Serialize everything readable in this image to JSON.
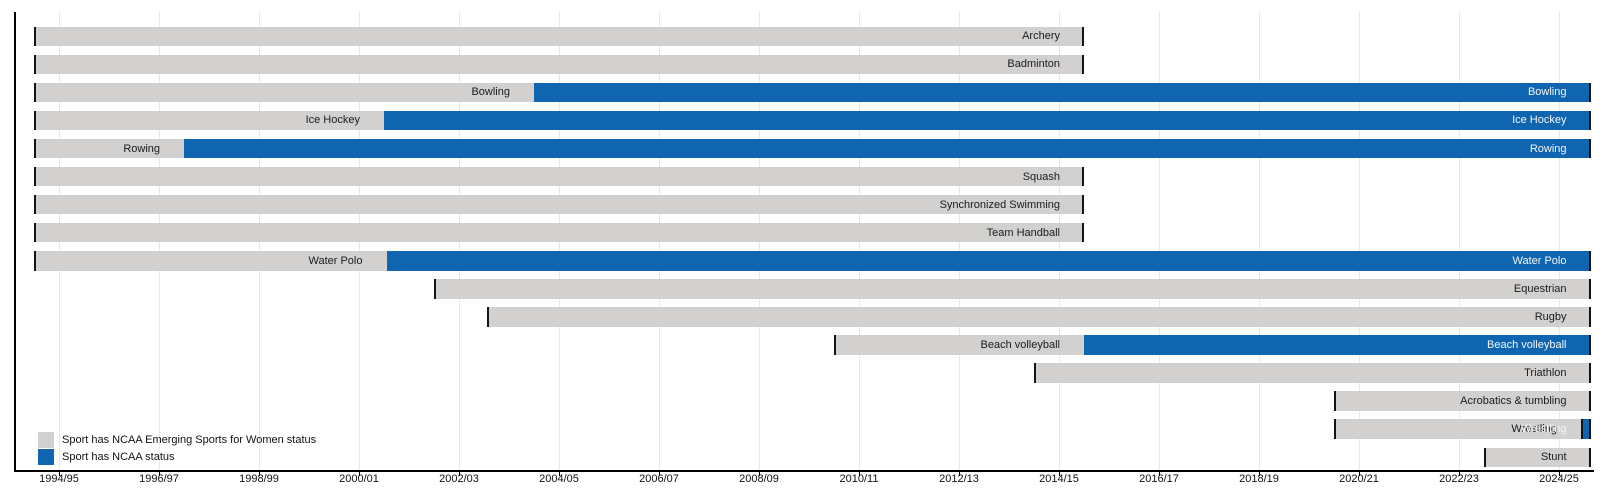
{
  "chart_data": {
    "type": "bar",
    "subtype": "horizontal-gantt-timeline",
    "title": "",
    "x_axis": {
      "unit": "academic year",
      "range_years": [
        1993.6,
        2025.7
      ],
      "grid": true,
      "ticks": [
        {
          "label": "1994/95",
          "year": 1994.5
        },
        {
          "label": "1996/97",
          "year": 1996.5
        },
        {
          "label": "1998/99",
          "year": 1998.5
        },
        {
          "label": "2000/01",
          "year": 2000.5
        },
        {
          "label": "2002/03",
          "year": 2002.5
        },
        {
          "label": "2004/05",
          "year": 2004.5
        },
        {
          "label": "2006/07",
          "year": 2006.5
        },
        {
          "label": "2008/09",
          "year": 2008.5
        },
        {
          "label": "2010/11",
          "year": 2010.5
        },
        {
          "label": "2012/13",
          "year": 2012.5
        },
        {
          "label": "2014/15",
          "year": 2014.5
        },
        {
          "label": "2016/17",
          "year": 2016.5
        },
        {
          "label": "2018/19",
          "year": 2018.5
        },
        {
          "label": "2020/21",
          "year": 2020.5
        },
        {
          "label": "2022/23",
          "year": 2022.5
        },
        {
          "label": "2024/25",
          "year": 2024.5
        }
      ]
    },
    "status_colors": {
      "emerging": "#d3d1cf",
      "ncaa": "#1065b1"
    },
    "legend": [
      {
        "swatch": "emerging",
        "label": "Sport has NCAA Emerging Sports for Women status"
      },
      {
        "swatch": "ncaa",
        "label": "Sport has NCAA status"
      }
    ],
    "sports": [
      {
        "name": "Archery",
        "segments": [
          {
            "status": "emerging",
            "start": 1994.0,
            "end": 2015.0
          }
        ]
      },
      {
        "name": "Badminton",
        "segments": [
          {
            "status": "emerging",
            "start": 1994.0,
            "end": 2015.0
          }
        ]
      },
      {
        "name": "Bowling",
        "segments": [
          {
            "status": "emerging",
            "start": 1994.0,
            "end": 2004.0
          },
          {
            "status": "ncaa",
            "start": 2004.0,
            "end": 2025.13
          }
        ]
      },
      {
        "name": "Ice Hockey",
        "segments": [
          {
            "status": "emerging",
            "start": 1994.0,
            "end": 2001.0
          },
          {
            "status": "ncaa",
            "start": 2001.0,
            "end": 2025.13
          }
        ]
      },
      {
        "name": "Rowing",
        "segments": [
          {
            "status": "emerging",
            "start": 1994.0,
            "end": 1997.0
          },
          {
            "status": "ncaa",
            "start": 1997.0,
            "end": 2025.13
          }
        ]
      },
      {
        "name": "Squash",
        "segments": [
          {
            "status": "emerging",
            "start": 1994.0,
            "end": 2015.0
          }
        ]
      },
      {
        "name": "Synchronized Swimming",
        "segments": [
          {
            "status": "emerging",
            "start": 1994.0,
            "end": 2015.0
          }
        ]
      },
      {
        "name": "Team Handball",
        "segments": [
          {
            "status": "emerging",
            "start": 1994.0,
            "end": 2015.0
          }
        ]
      },
      {
        "name": "Water Polo",
        "segments": [
          {
            "status": "emerging",
            "start": 1994.0,
            "end": 2001.05
          },
          {
            "status": "ncaa",
            "start": 2001.05,
            "end": 2025.13
          }
        ]
      },
      {
        "name": "Equestrian",
        "segments": [
          {
            "status": "emerging",
            "start": 2002.0,
            "end": 2025.13
          }
        ]
      },
      {
        "name": "Rugby",
        "segments": [
          {
            "status": "emerging",
            "start": 2003.05,
            "end": 2025.13
          }
        ]
      },
      {
        "name": "Beach volleyball",
        "segments": [
          {
            "status": "emerging",
            "start": 2010.0,
            "end": 2015.0
          },
          {
            "status": "ncaa",
            "start": 2015.0,
            "end": 2025.13
          }
        ]
      },
      {
        "name": "Triathlon",
        "segments": [
          {
            "status": "emerging",
            "start": 2014.0,
            "end": 2025.13
          }
        ]
      },
      {
        "name": "Acrobatics & tumbling",
        "segments": [
          {
            "status": "emerging",
            "start": 2020.0,
            "end": 2025.13
          }
        ]
      },
      {
        "name": "Wrestling",
        "segments": [
          {
            "status": "emerging",
            "start": 2020.0,
            "end": 2024.94
          },
          {
            "status": "ncaa",
            "start": 2024.94,
            "end": 2025.13,
            "tick_start": true
          }
        ]
      },
      {
        "name": "Stunt",
        "segments": [
          {
            "status": "emerging",
            "start": 2023.0,
            "end": 2025.13
          }
        ]
      }
    ]
  }
}
